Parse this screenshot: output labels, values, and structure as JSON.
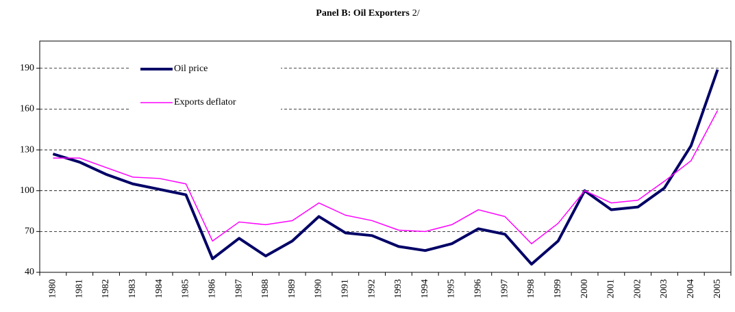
{
  "chart_data": {
    "type": "line",
    "title": "Panel B: Oil Exporters",
    "title_note": "2/",
    "categories": [
      "1980",
      "1981",
      "1982",
      "1983",
      "1984",
      "1985",
      "1986",
      "1987",
      "1988",
      "1989",
      "1990",
      "1991",
      "1992",
      "1993",
      "1994",
      "1995",
      "1996",
      "1997",
      "1998",
      "1999",
      "2000",
      "2001",
      "2002",
      "2003",
      "2004",
      "2005"
    ],
    "series": [
      {
        "name": "Oil price",
        "color": "#000066",
        "width": 4,
        "values": [
          127,
          121,
          112,
          105,
          101,
          97,
          50,
          65,
          52,
          63,
          81,
          69,
          67,
          59,
          56,
          61,
          72,
          68,
          46,
          63,
          100,
          86,
          88,
          102,
          133,
          189
        ]
      },
      {
        "name": "Exports deflator",
        "color": "#ff00ff",
        "width": 1.5,
        "values": [
          124,
          124,
          117,
          110,
          109,
          105,
          63,
          77,
          75,
          78,
          91,
          82,
          78,
          71,
          70,
          75,
          86,
          81,
          61,
          76,
          100,
          91,
          93,
          107,
          122,
          159
        ]
      }
    ],
    "ylim": [
      40,
      210
    ],
    "yticks": [
      40,
      70,
      100,
      130,
      160,
      190
    ],
    "grid": true,
    "legend": "upper left"
  }
}
